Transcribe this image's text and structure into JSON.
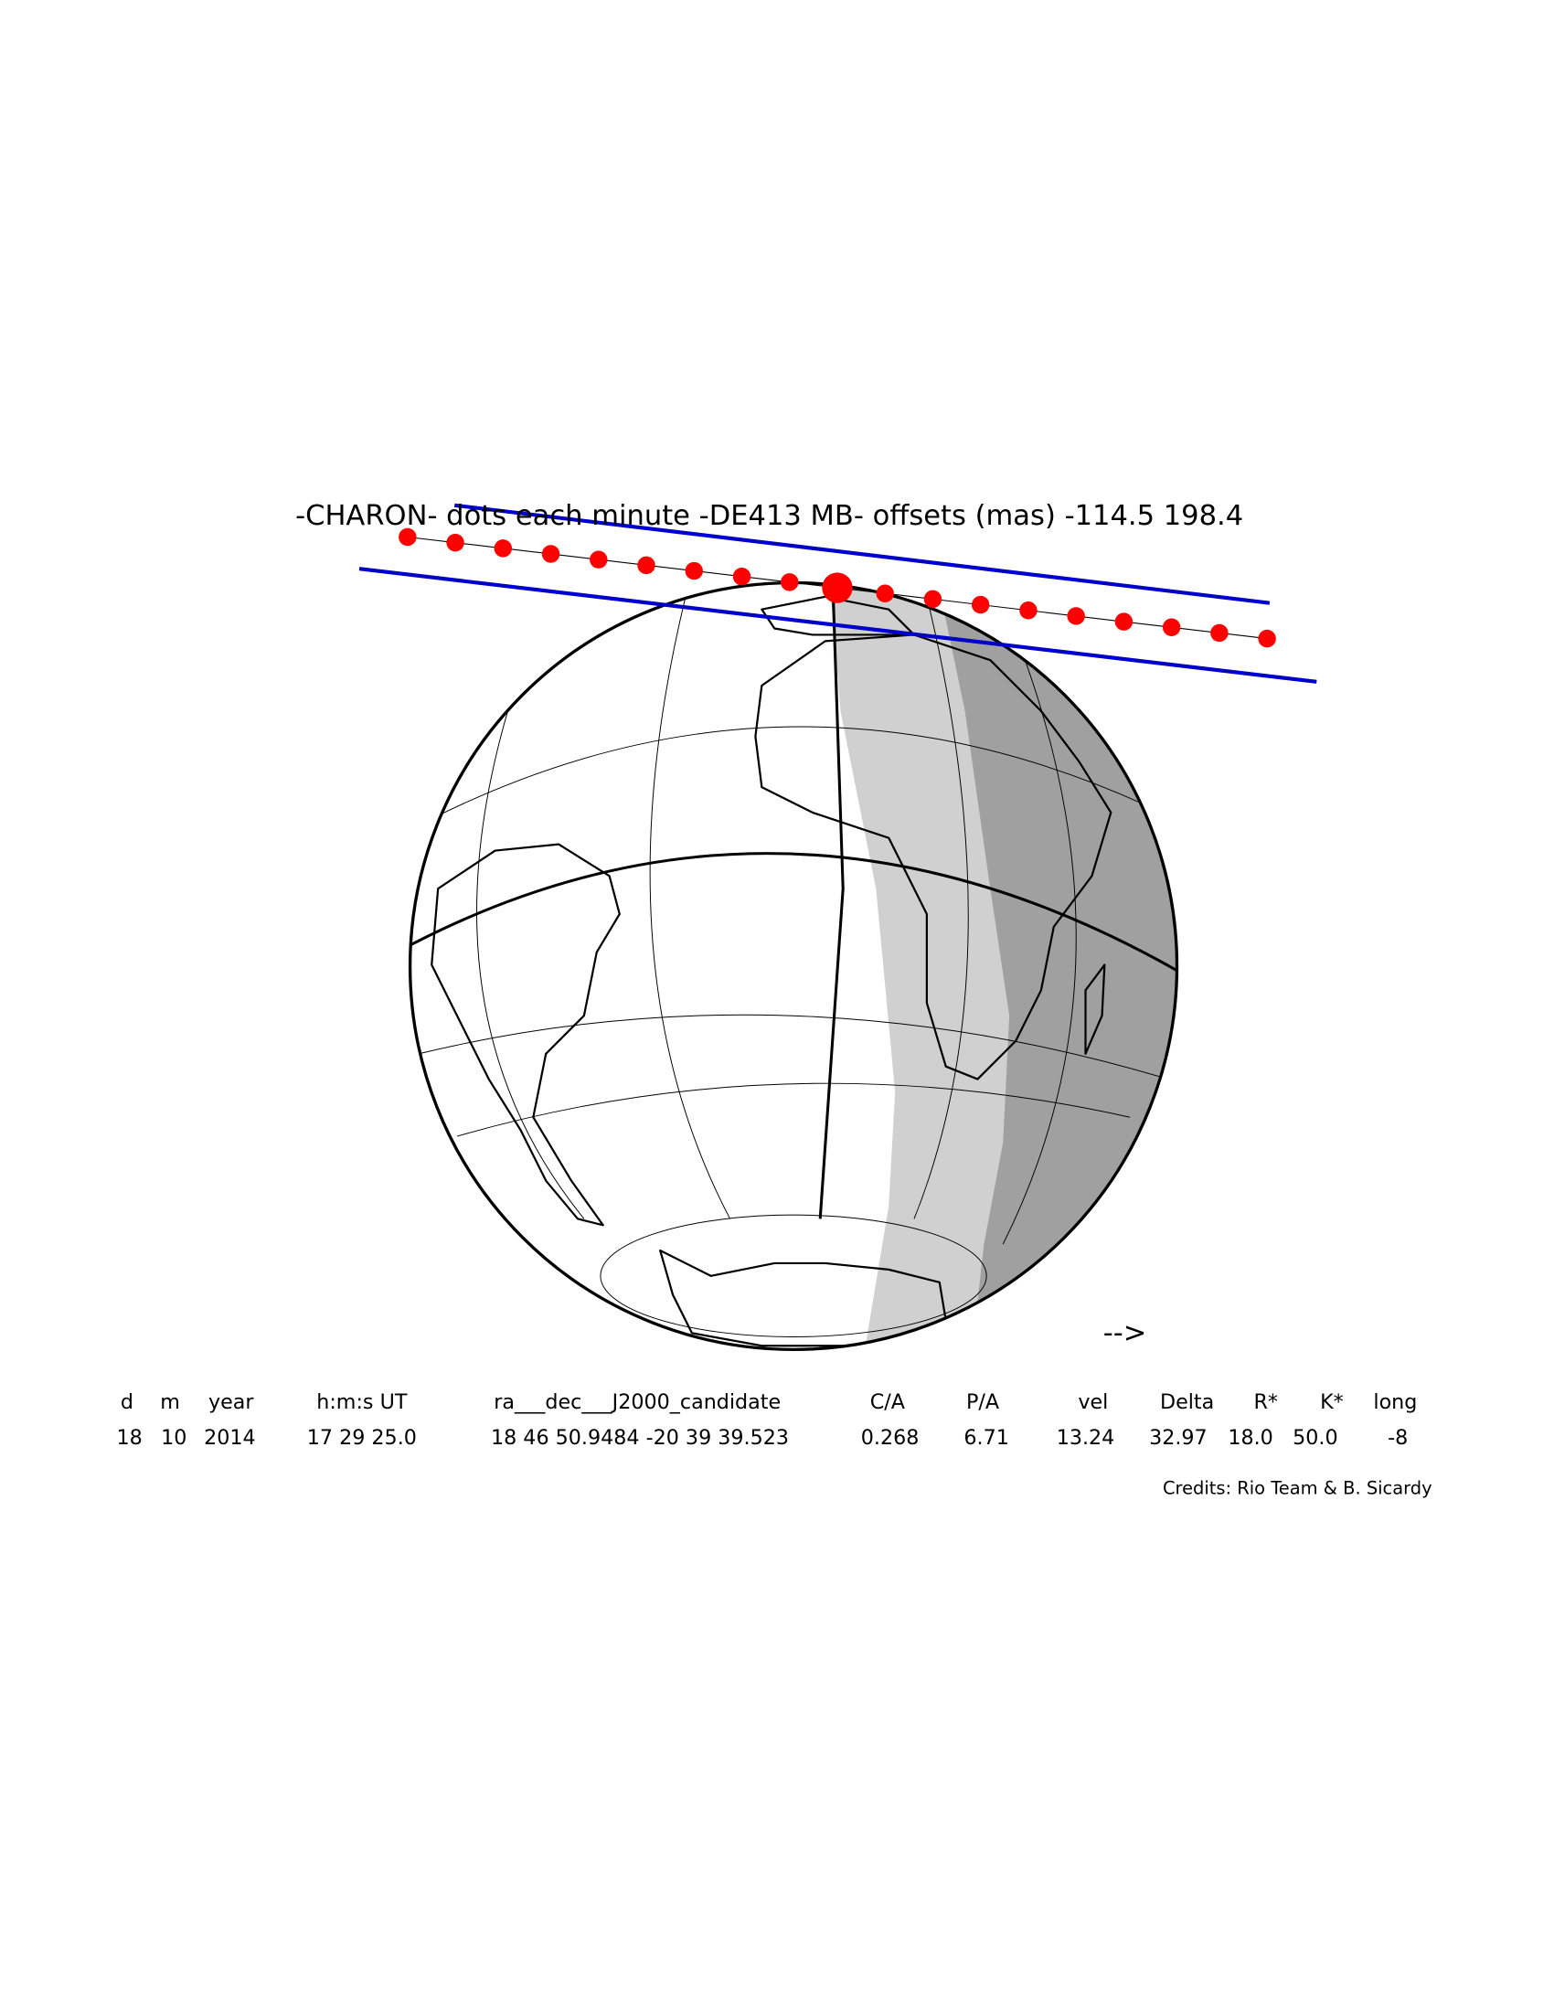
{
  "map": {
    "title": "-CHARON- dots each minute -DE413 MB- offsets (mas) -114.5   198.4",
    "direction_arrow": "-->",
    "table": {
      "header": [
        "d",
        "m",
        "year",
        "h:m:s UT",
        "ra___dec___J2000_candidate",
        "C/A",
        "P/A",
        "vel",
        "Delta",
        "R*",
        "K*",
        "long"
      ],
      "values": [
        "18",
        "10",
        "2014",
        "17 29 25.0",
        "18 46 50.9484 -20 39 39.523",
        "0.268",
        "6.71",
        "13.24",
        "32.97",
        "18.0",
        "50.0",
        "-8"
      ]
    },
    "credits": "Credits: Rio Team & B. Sicardy"
  }
}
